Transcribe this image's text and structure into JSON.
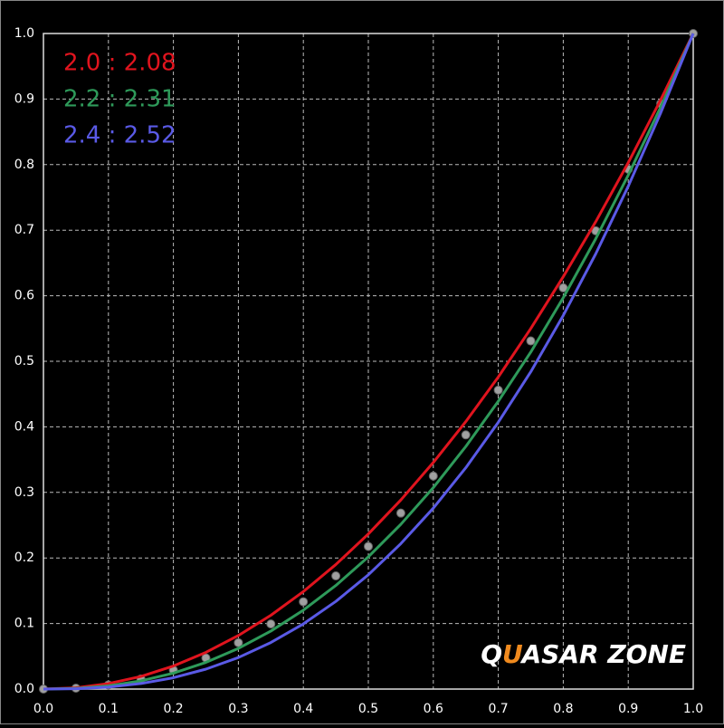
{
  "chart_data": {
    "type": "line",
    "x": [
      0,
      0.05,
      0.1,
      0.15,
      0.2,
      0.25,
      0.3,
      0.35,
      0.4,
      0.45,
      0.5,
      0.55,
      0.6,
      0.65,
      0.7,
      0.75,
      0.8,
      0.85,
      0.9,
      0.95,
      1
    ],
    "series": [
      {
        "name": "2.0 : 2.08",
        "color": "#e0141e",
        "values": [
          0,
          0.00197,
          0.0083,
          0.0193,
          0.0352,
          0.056,
          0.0817,
          0.1126,
          0.1487,
          0.19,
          0.2366,
          0.2884,
          0.3456,
          0.408,
          0.476,
          0.55,
          0.629,
          0.713,
          0.803,
          0.899,
          1
        ]
      },
      {
        "name": "2.2 : 2.31",
        "color": "#2e9a5a",
        "values": [
          0,
          0.00099,
          0.0049,
          0.0125,
          0.0243,
          0.0407,
          0.062,
          0.0885,
          0.1204,
          0.158,
          0.2017,
          0.2513,
          0.3073,
          0.37,
          0.439,
          0.514,
          0.597,
          0.687,
          0.784,
          0.888,
          1
        ]
      },
      {
        "name": "2.4 : 2.52",
        "color": "#5a5ae6",
        "values": [
          0,
          0.00053,
          0.003,
          0.0084,
          0.0173,
          0.0304,
          0.0481,
          0.071,
          0.0994,
          0.1337,
          0.1743,
          0.2218,
          0.276,
          0.3376,
          0.407,
          0.484,
          0.57,
          0.664,
          0.767,
          0.879,
          1
        ]
      },
      {
        "color": "#a0a0a0",
        "marker": "dot",
        "values": [
          0,
          0.0014,
          0.0063,
          0.0154,
          0.029,
          0.0474,
          0.0707,
          0.0993,
          0.1332,
          0.1726,
          0.2176,
          0.2684,
          0.325,
          0.3877,
          0.456,
          0.531,
          0.612,
          0.699,
          0.793,
          0.893,
          1
        ]
      }
    ],
    "xlim": [
      0,
      1
    ],
    "ylim": [
      0,
      1
    ],
    "xticks": [
      {
        "value": 0,
        "label": "0.0"
      },
      0.1,
      0.2,
      0.3,
      0.4,
      0.5,
      0.6,
      0.7,
      0.8,
      0.9,
      {
        "value": 1,
        "label": "1.0"
      }
    ],
    "yticks": [
      {
        "value": 0,
        "label": "0.0"
      },
      0.1,
      0.2,
      0.3,
      0.4,
      0.5,
      0.6,
      0.7,
      0.8,
      0.9,
      {
        "value": 1,
        "label": "1.0"
      }
    ],
    "grid": true,
    "legend": "top-left",
    "watermark": [
      {
        "text": "Q",
        "color": "#ffffff"
      },
      {
        "text": "U",
        "color": "#f08a1e"
      },
      {
        "text": "ASAR ZONE",
        "color": "#ffffff"
      }
    ]
  }
}
